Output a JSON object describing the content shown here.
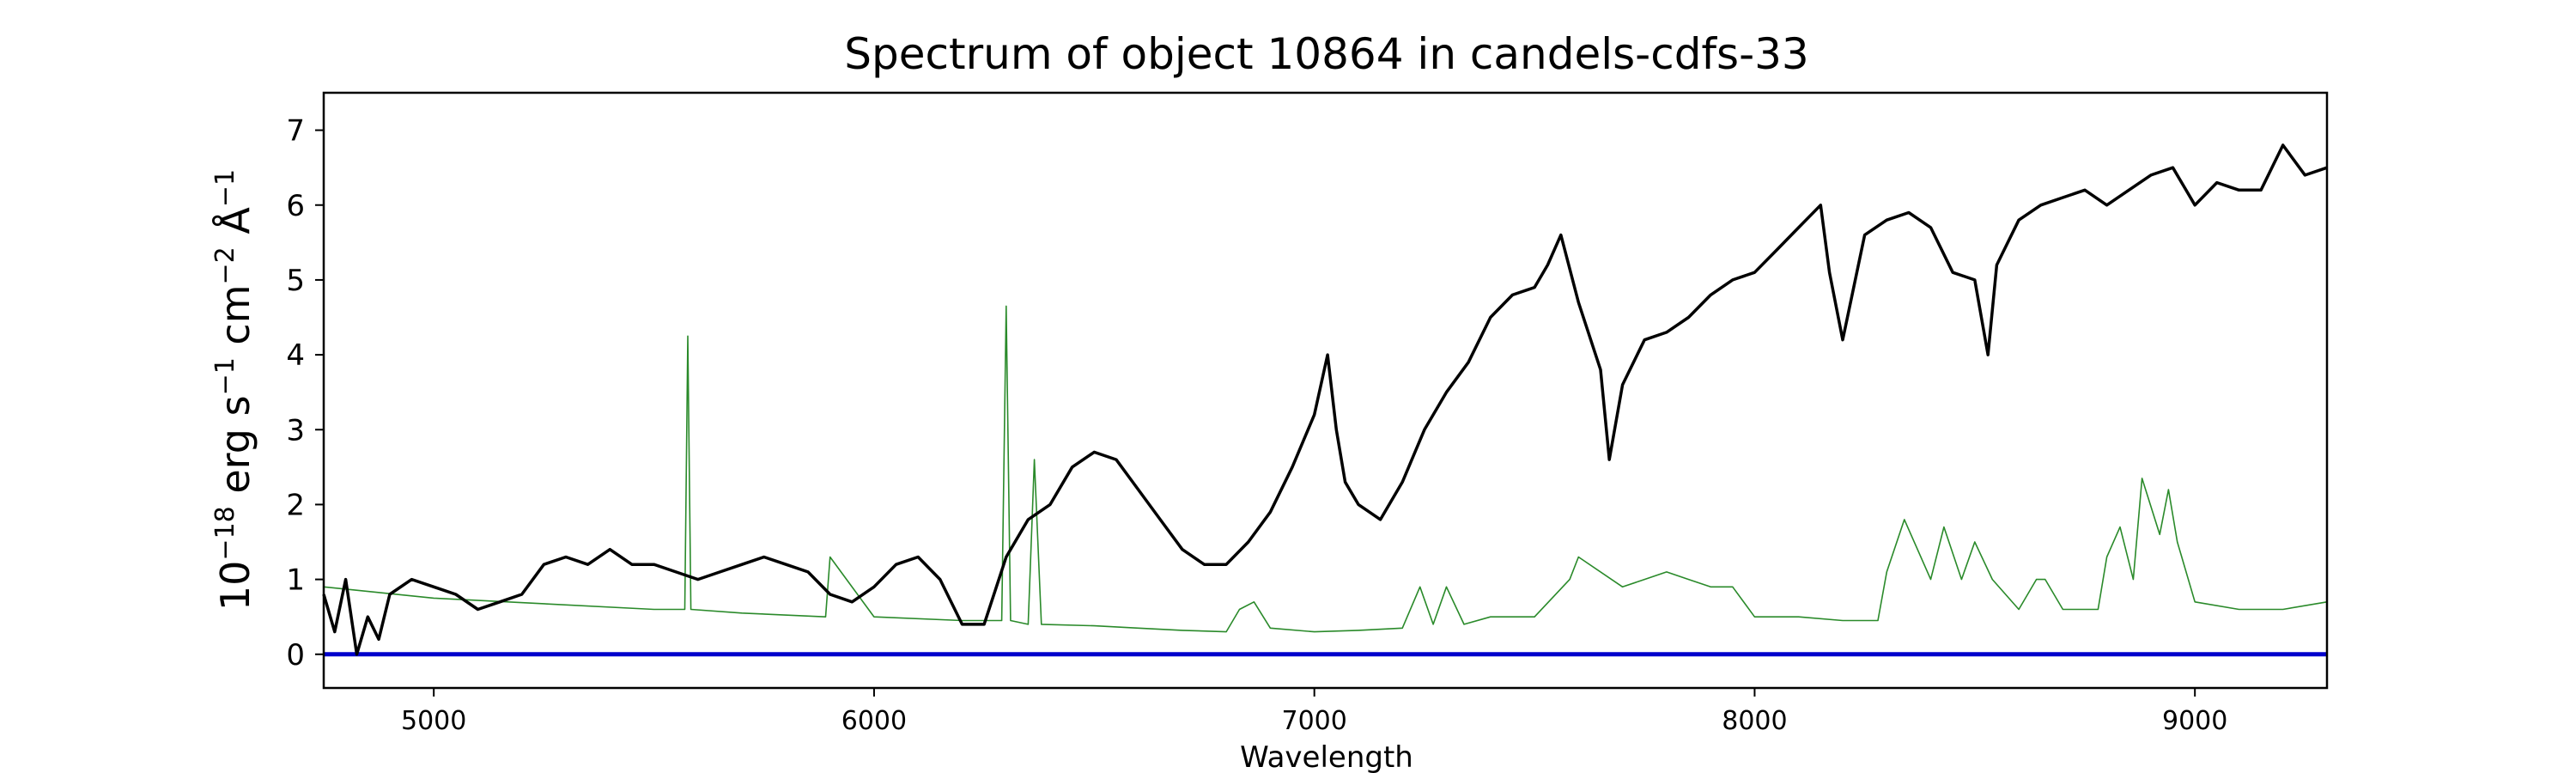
{
  "chart_data": {
    "type": "line",
    "title": "Spectrum of object 10864 in candels-cdfs-33",
    "xlabel": "Wavelength",
    "ylabel_parts": {
      "base": "10",
      "exp": "−18",
      "unit1": " erg s",
      "exp1": "−1",
      "unit2": " cm",
      "exp2": "−2",
      "unit3": " Å",
      "exp3": "−1"
    },
    "xlim": [
      4750,
      9300
    ],
    "ylim": [
      -0.45,
      7.5
    ],
    "xticks": [
      5000,
      6000,
      7000,
      8000,
      9000
    ],
    "yticks": [
      0,
      1,
      2,
      3,
      4,
      5,
      6,
      7
    ],
    "grid": false,
    "colors": {
      "spectrum": "#000000",
      "sky": "#2a8a2a",
      "zero": "#0000cc"
    },
    "series": [
      {
        "role": "spectrum",
        "x": [
          4750,
          4775,
          4800,
          4825,
          4850,
          4875,
          4900,
          4950,
          5000,
          5050,
          5100,
          5150,
          5200,
          5250,
          5300,
          5350,
          5400,
          5450,
          5500,
          5550,
          5600,
          5650,
          5700,
          5750,
          5800,
          5850,
          5900,
          5950,
          6000,
          6050,
          6100,
          6150,
          6200,
          6250,
          6300,
          6350,
          6400,
          6450,
          6500,
          6550,
          6600,
          6650,
          6700,
          6750,
          6800,
          6850,
          6900,
          6950,
          7000,
          7030,
          7050,
          7070,
          7100,
          7150,
          7200,
          7250,
          7300,
          7350,
          7400,
          7450,
          7500,
          7530,
          7560,
          7600,
          7650,
          7670,
          7700,
          7750,
          7800,
          7850,
          7900,
          7950,
          8000,
          8050,
          8100,
          8150,
          8170,
          8200,
          8250,
          8300,
          8350,
          8400,
          8450,
          8500,
          8530,
          8550,
          8600,
          8650,
          8700,
          8750,
          8800,
          8850,
          8900,
          8950,
          9000,
          9050,
          9100,
          9150,
          9200,
          9250,
          9300
        ],
        "y": [
          0.8,
          0.3,
          1.0,
          0.0,
          0.5,
          0.2,
          0.8,
          1.0,
          0.9,
          0.8,
          0.6,
          0.7,
          0.8,
          1.2,
          1.3,
          1.2,
          1.4,
          1.2,
          1.2,
          1.1,
          1.0,
          1.1,
          1.2,
          1.3,
          1.2,
          1.1,
          0.8,
          0.7,
          0.9,
          1.2,
          1.3,
          1.0,
          0.4,
          0.4,
          1.3,
          1.8,
          2.0,
          2.5,
          2.7,
          2.6,
          2.2,
          1.8,
          1.4,
          1.2,
          1.2,
          1.5,
          1.9,
          2.5,
          3.2,
          4.0,
          3.0,
          2.3,
          2.0,
          1.8,
          2.3,
          3.0,
          3.5,
          3.9,
          4.5,
          4.8,
          4.9,
          5.2,
          5.6,
          4.7,
          3.8,
          2.6,
          3.6,
          4.2,
          4.3,
          4.5,
          4.8,
          5.0,
          5.1,
          5.4,
          5.7,
          6.0,
          5.1,
          4.2,
          5.6,
          5.8,
          5.9,
          5.7,
          5.1,
          5.0,
          4.0,
          5.2,
          5.8,
          6.0,
          6.1,
          6.2,
          6.0,
          6.2,
          6.4,
          6.5,
          6.0,
          6.3,
          6.2,
          6.2,
          6.8,
          6.4,
          6.5
        ]
      },
      {
        "role": "sky",
        "x": [
          4750,
          5000,
          5500,
          5570,
          5577,
          5584,
          5700,
          5890,
          5900,
          6000,
          6200,
          6290,
          6300,
          6310,
          6350,
          6364,
          6380,
          6500,
          6600,
          6700,
          6800,
          6830,
          6863,
          6900,
          7000,
          7100,
          7200,
          7240,
          7270,
          7300,
          7340,
          7400,
          7500,
          7580,
          7600,
          7700,
          7750,
          7800,
          7850,
          7900,
          7950,
          8000,
          8100,
          8200,
          8280,
          8300,
          8340,
          8400,
          8430,
          8470,
          8500,
          8540,
          8600,
          8640,
          8660,
          8700,
          8780,
          8800,
          8830,
          8860,
          8880,
          8920,
          8940,
          8960,
          9000,
          9100,
          9200,
          9300
        ],
        "y": [
          0.9,
          0.75,
          0.6,
          0.6,
          4.25,
          0.6,
          0.55,
          0.5,
          1.3,
          0.5,
          0.45,
          0.45,
          4.65,
          0.45,
          0.4,
          2.6,
          0.4,
          0.38,
          0.35,
          0.32,
          0.3,
          0.6,
          0.7,
          0.35,
          0.3,
          0.32,
          0.35,
          0.9,
          0.4,
          0.9,
          0.4,
          0.5,
          0.5,
          1.0,
          1.3,
          0.9,
          1.0,
          1.1,
          1.0,
          0.9,
          0.9,
          0.5,
          0.5,
          0.45,
          0.45,
          1.1,
          1.8,
          1.0,
          1.7,
          1.0,
          1.5,
          1.0,
          0.6,
          1.0,
          1.0,
          0.6,
          0.6,
          1.3,
          1.7,
          1.0,
          2.35,
          1.6,
          2.2,
          1.5,
          0.7,
          0.6,
          0.6,
          0.7
        ]
      },
      {
        "role": "zero",
        "x": [
          4750,
          9300
        ],
        "y": [
          0,
          0
        ]
      }
    ]
  }
}
